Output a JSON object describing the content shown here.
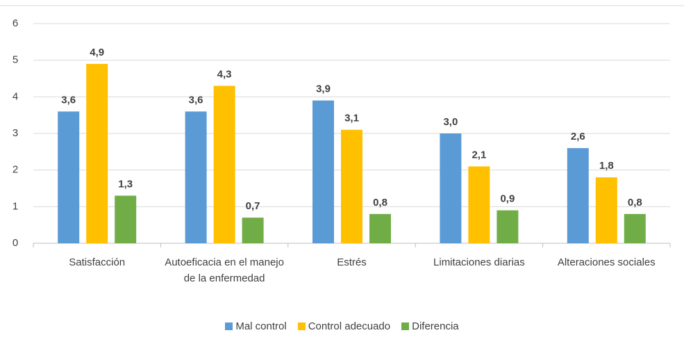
{
  "chart_data": {
    "type": "bar",
    "categories": [
      "Satisfacción",
      "Autoeficacia en el manejo de la enfermedad",
      "Estrés",
      "Limitaciones diarias",
      "Alteraciones sociales"
    ],
    "series": [
      {
        "name": "Mal control",
        "color": "#5b9bd5",
        "values": [
          3.6,
          3.6,
          3.9,
          3.0,
          2.6
        ],
        "value_labels": [
          "3,6",
          "3,6",
          "3,9",
          "3,0",
          "2,6"
        ]
      },
      {
        "name": "Control adecuado",
        "color": "#ffc000",
        "values": [
          4.9,
          4.3,
          3.1,
          2.1,
          1.8
        ],
        "value_labels": [
          "4,9",
          "4,3",
          "3,1",
          "2,1",
          "1,8"
        ]
      },
      {
        "name": "Diferencia",
        "color": "#70ad47",
        "values": [
          1.3,
          0.7,
          0.8,
          0.9,
          0.8
        ],
        "value_labels": [
          "1,3",
          "0,7",
          "0,8",
          "0,9",
          "0,8"
        ]
      }
    ],
    "ylim": [
      0,
      6
    ],
    "yticks": [
      0,
      1,
      2,
      3,
      4,
      5,
      6
    ],
    "grid": true,
    "legend": "bottom"
  }
}
